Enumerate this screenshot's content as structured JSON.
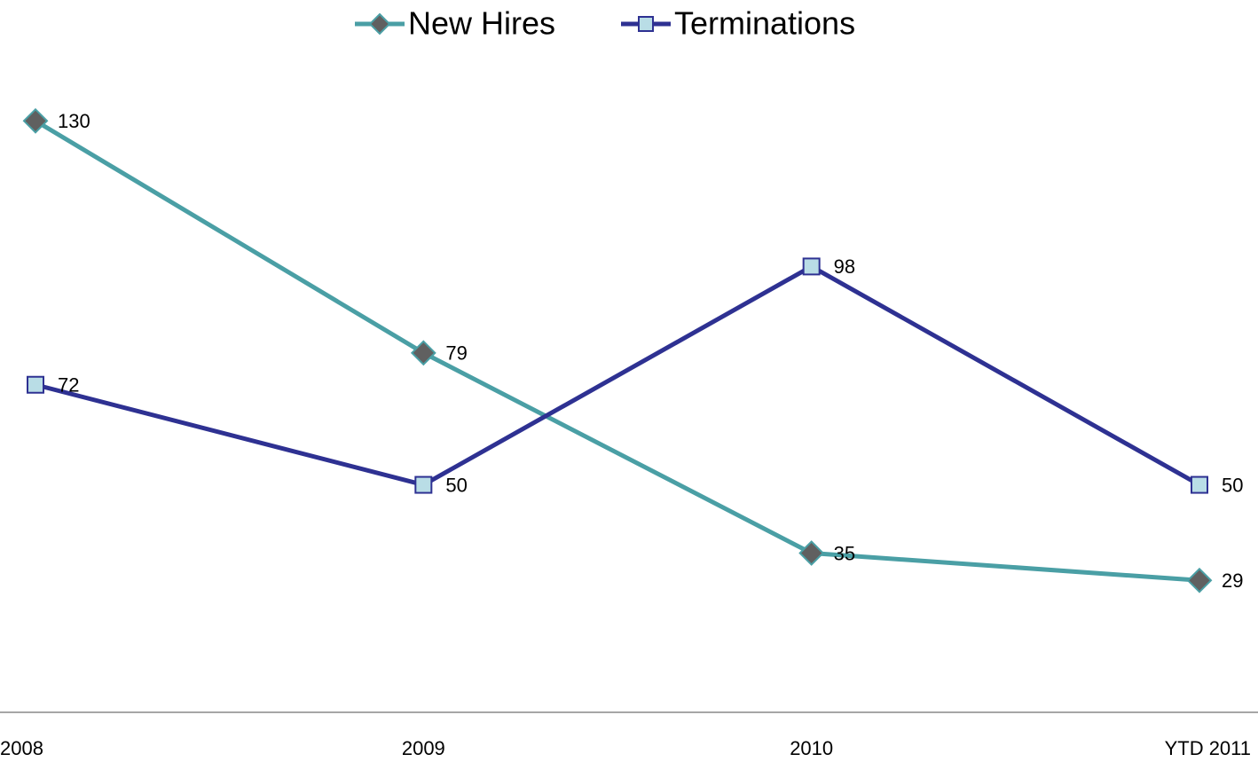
{
  "chart_data": {
    "type": "line",
    "categories": [
      "2008",
      "2009",
      "2010",
      "YTD 2011"
    ],
    "series": [
      {
        "name": "New Hires",
        "color": "#4a9fa5",
        "marker_color": "#606060",
        "marker": "diamond",
        "values": [
          130,
          79,
          35,
          29
        ]
      },
      {
        "name": "Terminations",
        "color": "#2e3192",
        "marker_color": "#b9dde6",
        "marker": "square",
        "values": [
          72,
          50,
          98,
          50
        ]
      }
    ],
    "ylim": [
      0,
      140
    ],
    "legend": "top"
  }
}
